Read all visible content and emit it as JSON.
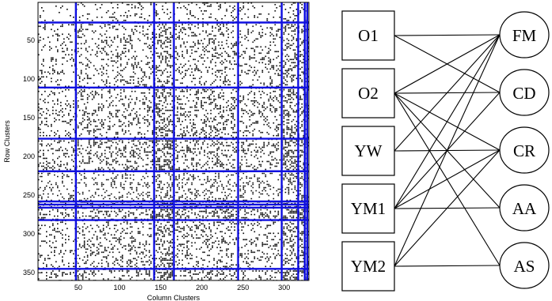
{
  "matrix_plot": {
    "xlabel": "Column Clusters",
    "ylabel": "Row Clusters",
    "x_ticks": [
      "50",
      "100",
      "150",
      "200",
      "250",
      "300"
    ],
    "y_ticks": [
      "50",
      "100",
      "150",
      "200",
      "250",
      "300",
      "350"
    ],
    "x_range": [
      1,
      330
    ],
    "y_range": [
      1,
      360
    ],
    "column_cluster_boundaries": [
      47,
      142,
      166,
      244,
      297,
      317,
      325,
      328
    ],
    "row_cluster_boundaries": [
      27,
      111,
      177,
      219,
      258,
      262,
      266,
      282,
      345
    ],
    "boundary_color": "#1010e0",
    "dot_color": "#000000"
  },
  "bipartite": {
    "left_nodes": [
      "O1",
      "O2",
      "YW",
      "YM1",
      "YM2"
    ],
    "right_nodes": [
      "FM",
      "CD",
      "CR",
      "AA",
      "AS"
    ],
    "edges": [
      [
        "O1",
        "FM"
      ],
      [
        "O1",
        "CD"
      ],
      [
        "O2",
        "FM"
      ],
      [
        "O2",
        "CD"
      ],
      [
        "O2",
        "CR"
      ],
      [
        "O2",
        "AA"
      ],
      [
        "O2",
        "AS"
      ],
      [
        "YW",
        "FM"
      ],
      [
        "YW",
        "CR"
      ],
      [
        "YM1",
        "FM"
      ],
      [
        "YM1",
        "CD"
      ],
      [
        "YM1",
        "CR"
      ],
      [
        "YM1",
        "AA"
      ],
      [
        "YM2",
        "FM"
      ],
      [
        "YM2",
        "CR"
      ],
      [
        "YM2",
        "AS"
      ]
    ]
  }
}
